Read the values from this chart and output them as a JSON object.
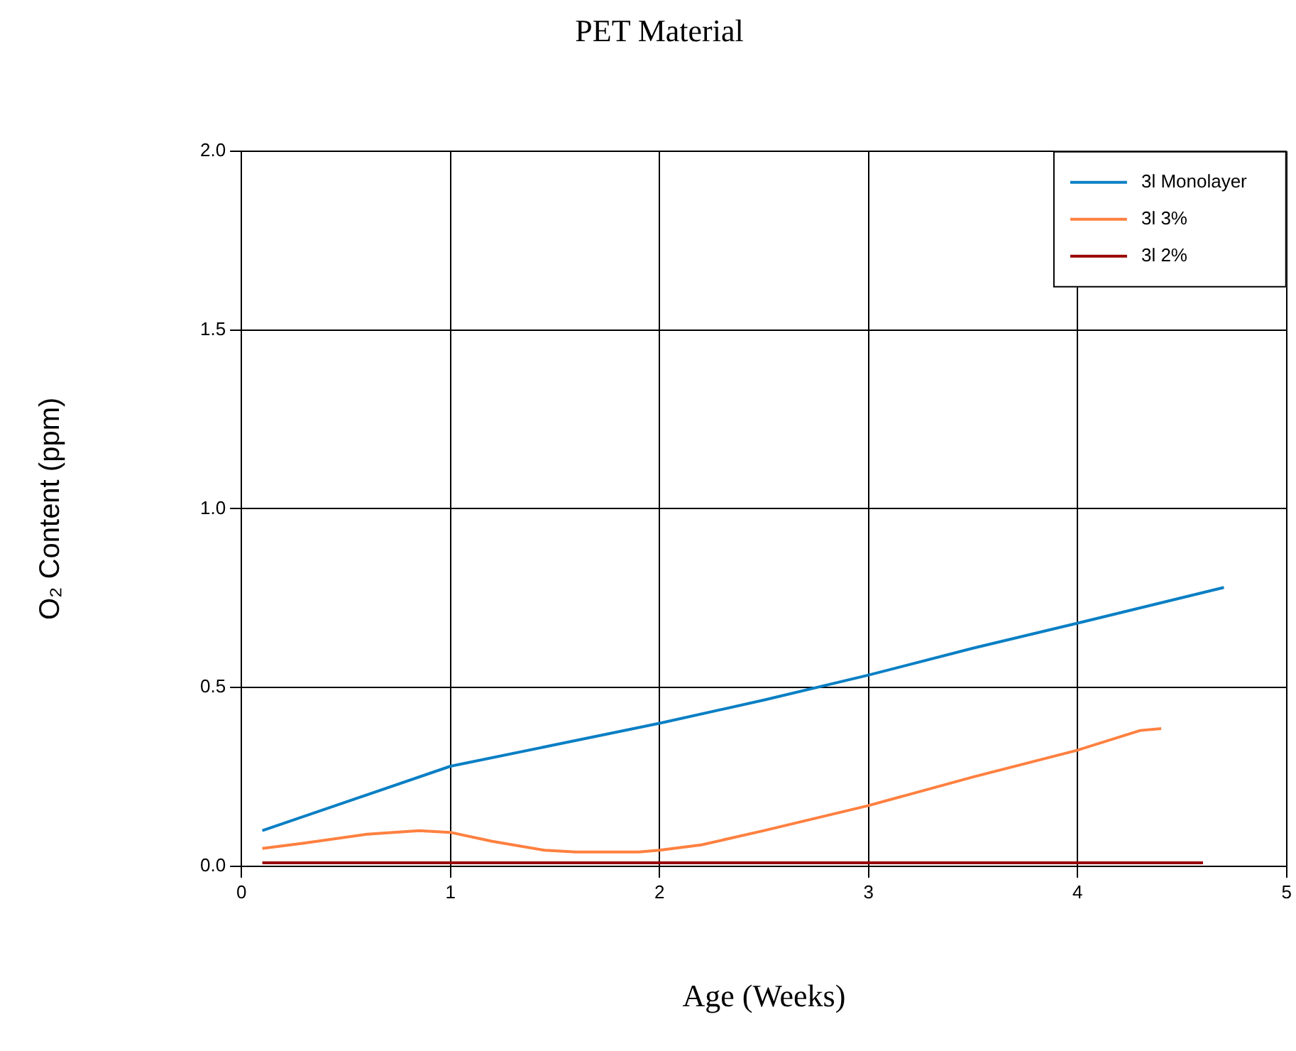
{
  "chart_data": {
    "type": "line",
    "title": "PET Material",
    "xlabel": "Age (Weeks)",
    "ylabel": "O₂ Content (ppm)",
    "xlim": [
      0,
      5
    ],
    "xticks": [
      0,
      1,
      2,
      3,
      4,
      5
    ],
    "ylim": [
      0,
      2
    ],
    "yticks": [
      {
        "value": 0,
        "label": "0.0"
      },
      {
        "value": 0.5,
        "label": "0.5"
      },
      {
        "value": 1,
        "label": "1.0"
      },
      {
        "value": 1.5,
        "label": "1.5"
      },
      {
        "value": 2,
        "label": "2.0"
      }
    ],
    "grid": true,
    "legend": "top right",
    "marker": "none",
    "line_style": "solid",
    "series": [
      {
        "name": "3l Monolayer",
        "color": "#0a7fc4",
        "x": [
          0.1,
          0.5,
          1.0,
          1.5,
          2.0,
          2.5,
          3.0,
          3.5,
          4.0,
          4.7
        ],
        "values": [
          0.1,
          0.18,
          0.28,
          0.34,
          0.4,
          0.465,
          0.535,
          0.61,
          0.68,
          0.78
        ]
      },
      {
        "name": "3l 3%",
        "color": "#ff8040",
        "x": [
          0.1,
          0.3,
          0.6,
          0.85,
          1.0,
          1.2,
          1.45,
          1.6,
          1.9,
          2.0,
          2.2,
          2.5,
          3.0,
          3.5,
          4.0,
          4.3,
          4.4
        ],
        "values": [
          0.05,
          0.065,
          0.09,
          0.1,
          0.095,
          0.07,
          0.045,
          0.04,
          0.04,
          0.045,
          0.06,
          0.1,
          0.17,
          0.25,
          0.325,
          0.38,
          0.385
        ]
      },
      {
        "name": "3l 2%",
        "color": "#990000",
        "x": [
          0.1,
          4.6
        ],
        "values": [
          0.01,
          0.01
        ]
      }
    ]
  }
}
